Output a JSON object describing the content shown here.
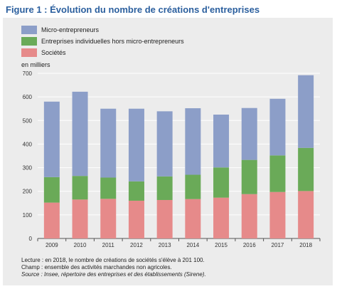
{
  "title": "Figure 1 : Évolution du nombre de créations d'entreprises",
  "chart_data": {
    "type": "bar",
    "stacked": true,
    "categories": [
      "2009",
      "2010",
      "2011",
      "2012",
      "2013",
      "2014",
      "2015",
      "2016",
      "2017",
      "2018"
    ],
    "series": [
      {
        "name": "Sociétés",
        "color": "#e68a8a",
        "values": [
          152,
          165,
          168,
          160,
          163,
          167,
          173,
          188,
          197,
          201
        ]
      },
      {
        "name": "Entreprises individuelles hors micro-entrepreneurs",
        "color": "#6aaa58",
        "values": [
          108,
          100,
          90,
          82,
          100,
          103,
          128,
          145,
          155,
          183
        ]
      },
      {
        "name": "Micro-entrepreneurs",
        "color": "#8c9ec8",
        "values": [
          320,
          357,
          292,
          308,
          276,
          282,
          224,
          220,
          240,
          308
        ]
      }
    ],
    "legend_order": [
      "Micro-entrepreneurs",
      "Entreprises individuelles hors micro-entrepreneurs",
      "Sociétés"
    ],
    "ylabel": "en milliers",
    "ylim": [
      0,
      700
    ],
    "yticks": [
      0,
      100,
      200,
      300,
      400,
      500,
      600,
      700
    ],
    "grid": true,
    "legend_position": "top-left"
  },
  "notes": {
    "line1": "Lecture : en 2018, le nombre de créations de sociétés s'élève à 201 100.",
    "line2": "Champ : ensemble des activités marchandes non agricoles.",
    "source": "Source : Insee, répertoire des entreprises et des établissements (Sirene)."
  }
}
